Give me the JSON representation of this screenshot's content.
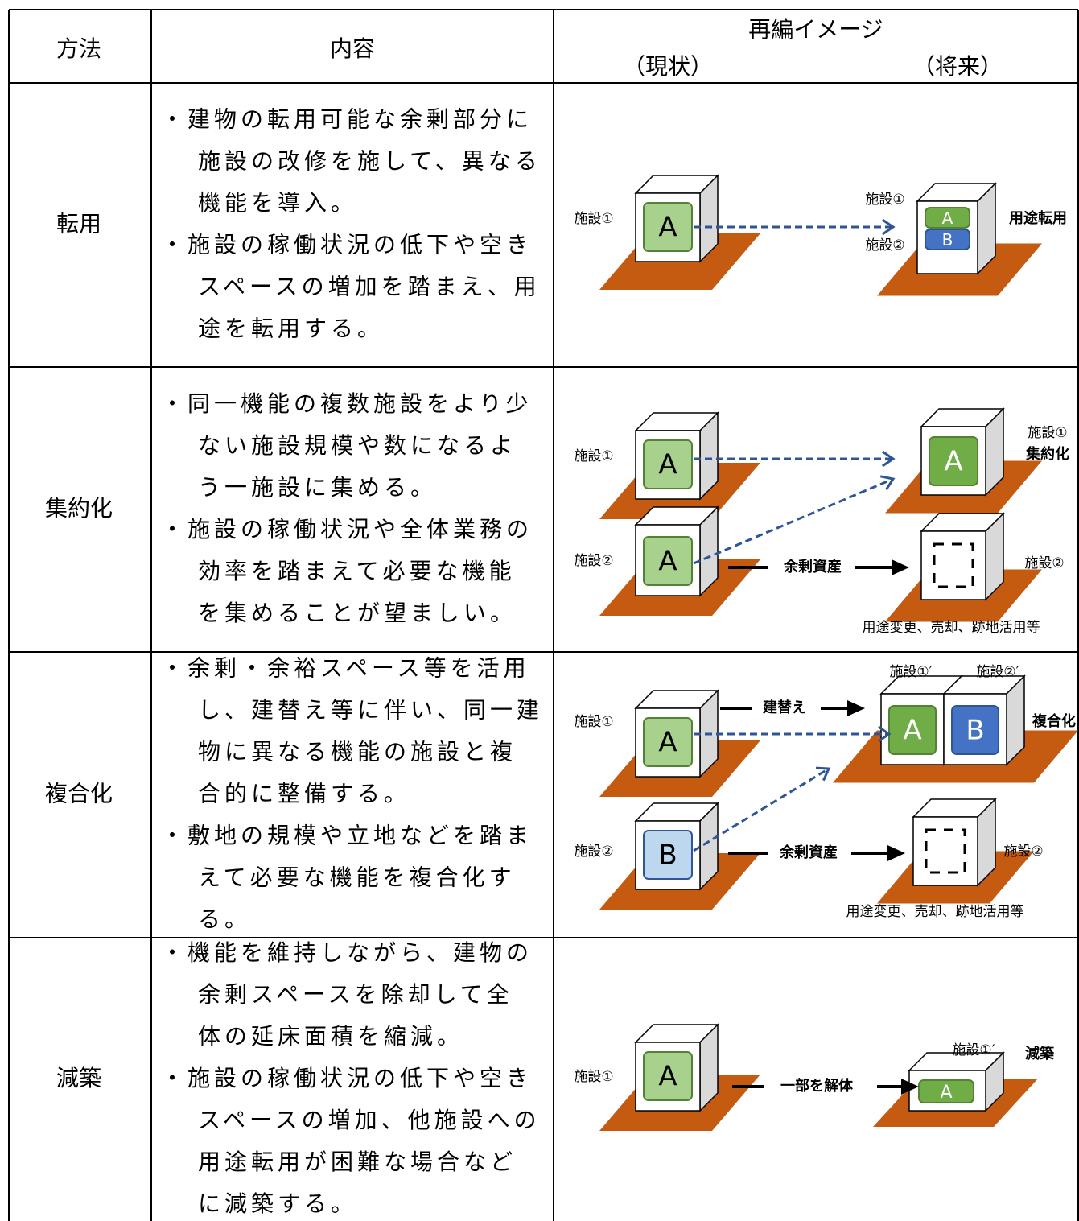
{
  "header": {
    "method": "方法",
    "content": "内容",
    "image": "再編イメージ",
    "current": "（現状）",
    "future": "（将来）"
  },
  "rows": [
    {
      "method": "転用",
      "content": [
        "・建物の転用可能な余剰部分に",
        "施設の改修を施して、異なる",
        "機能を導入。",
        "・施設の稼働状況の低下や空き",
        "スペースの増加を踏まえ、用",
        "途を転用する。"
      ],
      "image": {
        "texts": [
          "施設①",
          "施設①",
          "施設②",
          "用途転用"
        ],
        "boxes": [
          "A",
          "A",
          "B"
        ]
      }
    },
    {
      "method": "集約化",
      "content": [
        "・同一機能の複数施設をより少",
        "ない施設規模や数になるよ",
        "う一施設に集める。",
        "・施設の稼働状況や全体業務の",
        "効率を踏まえて必要な機能",
        "を集めることが望ましい。"
      ],
      "image": {
        "texts": [
          "施設①",
          "施設②",
          "施設①",
          "集約化",
          "余剰資産",
          "施設②",
          "用途変更、売却、跡地活用等"
        ],
        "boxes": [
          "A",
          "A",
          "A"
        ]
      }
    },
    {
      "method": "複合化",
      "content": [
        "・余剰・余裕スペース等を活用",
        "し、建替え等に伴い、同一建",
        "物に異なる機能の施設と複",
        "合的に整備する。",
        "・敷地の規模や立地などを踏ま",
        "えて必要な機能を複合化す",
        "る。"
      ],
      "image": {
        "texts": [
          "施設①",
          "施設②",
          "建替え",
          "施設①′",
          "施設②′",
          "複合化",
          "余剰資産",
          "施設②",
          "用途変更、売却、跡地活用等"
        ],
        "boxes": [
          "A",
          "B",
          "A",
          "B"
        ]
      }
    },
    {
      "method": "減築",
      "content": [
        "・機能を維持しながら、建物の",
        "余剰スペースを除却して全",
        "体の延床面積を縮減。",
        "・施設の稼働状況の低下や空き",
        "スペースの増加、他施設への",
        "用途転用が困難な場合など",
        "に減築する。"
      ],
      "image": {
        "texts": [
          "施設①",
          "一部を解体",
          "施設①′",
          "減築"
        ],
        "boxes": [
          "A",
          "A"
        ]
      }
    }
  ]
}
